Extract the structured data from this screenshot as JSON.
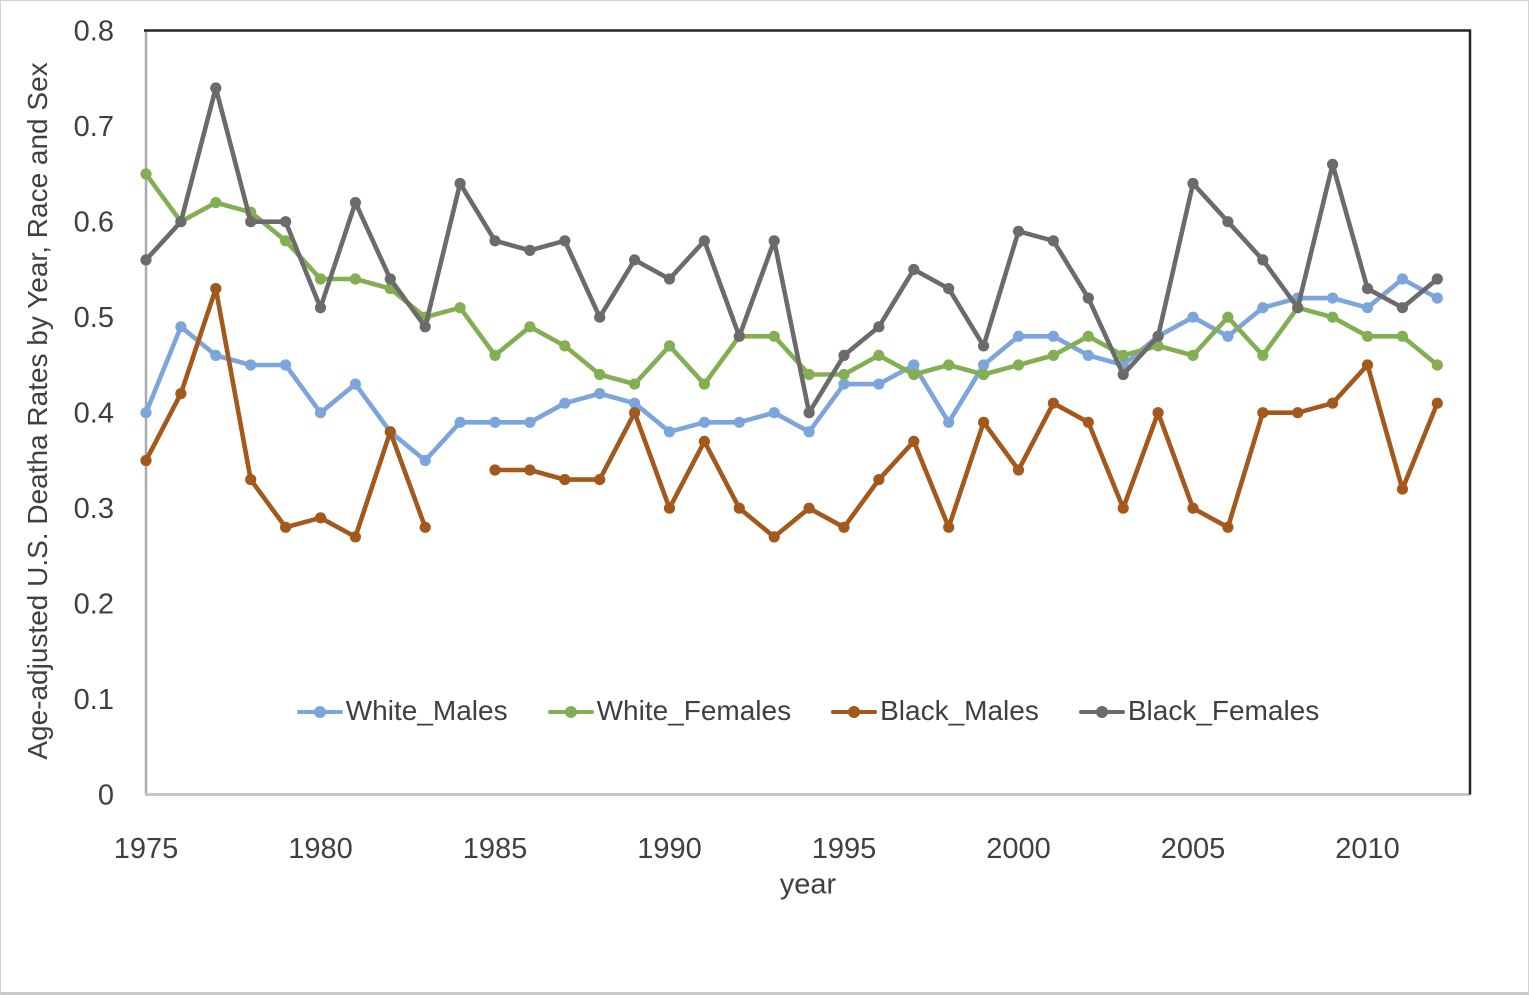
{
  "chart_data": {
    "type": "line",
    "title": "",
    "ylabel": "Age-adjusted U.S. Deatha Rates by Year, Race and Sex",
    "xlabel": "year",
    "xlim": [
      1975,
      2013
    ],
    "ylim": [
      0,
      0.8
    ],
    "grid": false,
    "legend_position": "bottom-center-inside",
    "marker": "circle",
    "x_tick_labels": [
      "1975",
      "1980",
      "1985",
      "1990",
      "1995",
      "2000",
      "2005",
      "2010"
    ],
    "y_tick_labels": [
      "0.8",
      "0.7",
      "0.6",
      "0.5",
      "0.4",
      "0.3",
      "0.2",
      "0.1",
      "0"
    ],
    "x": [
      1975,
      1976,
      1977,
      1978,
      1979,
      1980,
      1981,
      1982,
      1983,
      1984,
      1985,
      1986,
      1987,
      1988,
      1989,
      1990,
      1991,
      1992,
      1993,
      1994,
      1995,
      1996,
      1997,
      1998,
      1999,
      2000,
      2001,
      2002,
      2003,
      2004,
      2005,
      2006,
      2007,
      2008,
      2009,
      2010,
      2011,
      2012
    ],
    "series": [
      {
        "name": "White_Males",
        "color": "#7CA5DB",
        "values": [
          0.4,
          0.49,
          0.46,
          0.45,
          0.45,
          0.4,
          0.43,
          0.38,
          0.35,
          0.39,
          0.39,
          0.39,
          0.41,
          0.42,
          0.41,
          0.38,
          0.39,
          0.39,
          0.4,
          0.38,
          0.43,
          0.43,
          0.45,
          0.39,
          0.45,
          0.48,
          0.48,
          0.46,
          0.45,
          0.48,
          0.5,
          0.48,
          0.51,
          0.52,
          0.52,
          0.51,
          0.54,
          0.52
        ]
      },
      {
        "name": "White_Females",
        "color": "#83AE53",
        "values": [
          0.65,
          0.6,
          0.62,
          0.61,
          0.58,
          0.54,
          0.54,
          0.53,
          0.5,
          0.51,
          0.46,
          0.49,
          0.47,
          0.44,
          0.43,
          0.47,
          0.43,
          0.48,
          0.48,
          0.44,
          0.44,
          0.46,
          0.44,
          0.45,
          0.44,
          0.45,
          0.46,
          0.48,
          0.46,
          0.47,
          0.46,
          0.5,
          0.46,
          0.51,
          0.5,
          0.48,
          0.48,
          0.45
        ]
      },
      {
        "name": "Black_Males",
        "color": "#A3581C",
        "values": [
          0.35,
          0.42,
          0.53,
          0.33,
          0.28,
          0.29,
          0.27,
          0.38,
          0.28,
          null,
          0.34,
          0.34,
          0.33,
          0.33,
          0.4,
          0.3,
          0.37,
          0.3,
          0.27,
          0.3,
          0.28,
          0.33,
          0.37,
          0.28,
          0.39,
          0.34,
          0.41,
          0.39,
          0.3,
          0.4,
          0.3,
          0.28,
          0.4,
          0.4,
          0.41,
          0.45,
          0.32,
          0.41
        ]
      },
      {
        "name": "Black_Females",
        "color": "#6B6B6B",
        "values": [
          0.56,
          0.6,
          0.74,
          0.6,
          0.6,
          0.51,
          0.62,
          0.54,
          0.49,
          0.64,
          0.58,
          0.57,
          0.58,
          0.5,
          0.56,
          0.54,
          0.58,
          0.48,
          0.58,
          0.4,
          0.46,
          0.49,
          0.55,
          0.53,
          0.47,
          0.59,
          0.58,
          0.52,
          0.44,
          0.48,
          0.64,
          0.6,
          0.56,
          0.51,
          0.66,
          0.53,
          0.51,
          0.54
        ]
      }
    ],
    "colors": {
      "axis_text": "#404040",
      "frame_dark": "#262626",
      "frame_light": "#ababab",
      "baseline": "#c6c6c6"
    }
  }
}
